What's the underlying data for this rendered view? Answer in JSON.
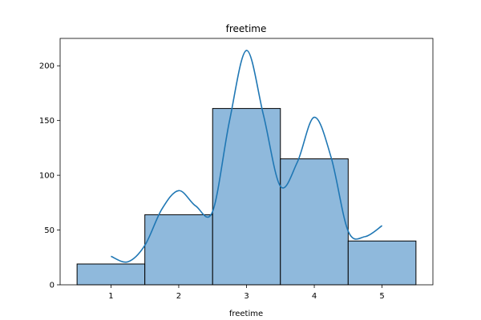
{
  "chart_data": {
    "type": "bar",
    "title": "freetime",
    "xlabel": "freetime",
    "ylabel": "",
    "x_ticks": [
      1,
      2,
      3,
      4,
      5
    ],
    "y_ticks": [
      0,
      50,
      100,
      150,
      200
    ],
    "xlim": [
      0.25,
      5.75
    ],
    "ylim": [
      0,
      225
    ],
    "bins": [
      {
        "left": 0.5,
        "right": 1.5,
        "count": 19
      },
      {
        "left": 1.5,
        "right": 2.5,
        "count": 64
      },
      {
        "left": 2.5,
        "right": 3.5,
        "count": 161
      },
      {
        "left": 3.5,
        "right": 4.5,
        "count": 115
      },
      {
        "left": 4.5,
        "right": 5.5,
        "count": 40
      }
    ],
    "kde": {
      "x": [
        1.0,
        1.25,
        1.5,
        1.75,
        2.0,
        2.25,
        2.5,
        2.75,
        3.0,
        3.25,
        3.5,
        3.75,
        4.0,
        4.25,
        4.5,
        4.75,
        5.0
      ],
      "y": [
        26,
        21,
        36,
        69,
        86,
        72,
        67,
        150,
        214,
        155,
        90,
        112,
        153,
        116,
        49,
        44,
        54
      ]
    },
    "colors": {
      "bar_fill": "#8fb9dc",
      "bar_edge": "#000000",
      "kde_line": "#1f77b4"
    },
    "grid": false,
    "legend": "none"
  }
}
